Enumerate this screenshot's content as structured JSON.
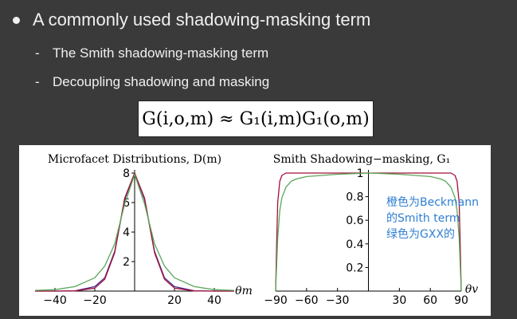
{
  "slide": {
    "bullet_main": "A commonly used shadowing-masking term",
    "sub_bullets": [
      "The Smith shadowing-masking term",
      "Decoupling shadowing and masking"
    ],
    "dash": "-"
  },
  "formula": "G(i,o,m) ≈ G₁(i,m)G₁(o,m)",
  "annotation": [
    "橙色为Beckmann",
    "的Smith term",
    "绿色为GXX的"
  ],
  "colors": {
    "background": "#3a3a3a",
    "beckmann": "#a0123a",
    "purple": "#4a2a8a",
    "ggx": "#5aa85a",
    "note": "#2f7fd2"
  },
  "chart_data": [
    {
      "type": "line",
      "title": "Microfacet Distributions, D(m)",
      "xlabel": "θm",
      "xlim": [
        -50,
        50
      ],
      "ylim": [
        0,
        8
      ],
      "xticks": [
        -40,
        -20,
        20,
        40
      ],
      "yticks": [
        2,
        4,
        6,
        8
      ],
      "series": [
        {
          "color": "#4a2a8a",
          "x": [
            -50,
            -40,
            -30,
            -20,
            -15,
            -10,
            -5,
            0,
            5,
            10,
            15,
            20,
            30,
            40,
            50
          ],
          "y": [
            0,
            0,
            0.02,
            0.3,
            0.9,
            2.7,
            6.2,
            8,
            6.2,
            2.7,
            0.9,
            0.3,
            0.02,
            0,
            0
          ]
        },
        {
          "color": "#a0123a",
          "x": [
            -50,
            -40,
            -30,
            -20,
            -15,
            -10,
            -5,
            0,
            5,
            10,
            15,
            20,
            30,
            40,
            50
          ],
          "y": [
            0,
            0,
            0.01,
            0.2,
            0.8,
            2.6,
            6.3,
            8,
            6.3,
            2.6,
            0.8,
            0.2,
            0.01,
            0,
            0
          ]
        },
        {
          "color": "#5aa85a",
          "x": [
            -50,
            -40,
            -30,
            -20,
            -15,
            -10,
            -5,
            0,
            5,
            10,
            15,
            20,
            30,
            40,
            50
          ],
          "y": [
            0.05,
            0.1,
            0.3,
            0.9,
            1.7,
            3.2,
            5.9,
            7.9,
            5.9,
            3.2,
            1.7,
            0.9,
            0.3,
            0.1,
            0.05
          ]
        }
      ]
    },
    {
      "type": "line",
      "title": "Smith Shadowing−masking, G₁",
      "xlabel": "θv",
      "xlim": [
        -90,
        90
      ],
      "ylim": [
        0,
        1
      ],
      "xticks": [
        -90,
        -60,
        -30,
        30,
        60,
        90
      ],
      "yticks": [
        0.2,
        0.4,
        0.6,
        0.8,
        1
      ],
      "series": [
        {
          "color": "#a0123a",
          "x": [
            -90,
            -89,
            -88,
            -86,
            -84,
            -80,
            -60,
            -30,
            0,
            30,
            60,
            80,
            84,
            86,
            88,
            89,
            90
          ],
          "y": [
            0,
            0.4,
            0.75,
            0.93,
            0.98,
            1,
            1,
            1,
            1,
            1,
            1,
            1,
            0.98,
            0.93,
            0.75,
            0.4,
            0
          ]
        },
        {
          "color": "#5aa85a",
          "x": [
            -90,
            -88,
            -86,
            -84,
            -80,
            -75,
            -70,
            -60,
            -30,
            0,
            30,
            60,
            70,
            75,
            80,
            84,
            86,
            88,
            90
          ],
          "y": [
            0,
            0.45,
            0.68,
            0.79,
            0.88,
            0.93,
            0.95,
            0.97,
            0.99,
            1,
            0.99,
            0.97,
            0.95,
            0.93,
            0.88,
            0.79,
            0.68,
            0.45,
            0
          ]
        }
      ]
    }
  ]
}
